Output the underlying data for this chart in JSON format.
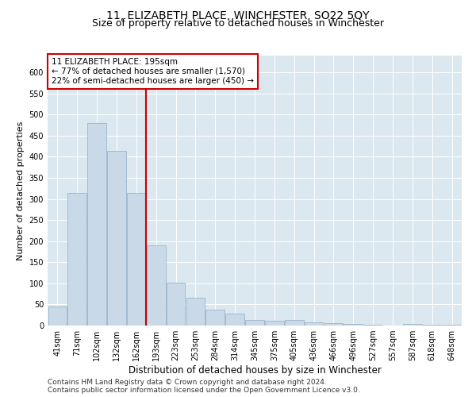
{
  "title": "11, ELIZABETH PLACE, WINCHESTER, SO22 5QY",
  "subtitle": "Size of property relative to detached houses in Winchester",
  "xlabel": "Distribution of detached houses by size in Winchester",
  "ylabel": "Number of detached properties",
  "bar_labels": [
    "41sqm",
    "71sqm",
    "102sqm",
    "132sqm",
    "162sqm",
    "193sqm",
    "223sqm",
    "253sqm",
    "284sqm",
    "314sqm",
    "345sqm",
    "375sqm",
    "405sqm",
    "436sqm",
    "466sqm",
    "496sqm",
    "527sqm",
    "557sqm",
    "587sqm",
    "618sqm",
    "648sqm"
  ],
  "bar_values": [
    45,
    315,
    480,
    415,
    315,
    190,
    102,
    65,
    37,
    28,
    14,
    12,
    13,
    7,
    5,
    3,
    1,
    0,
    3,
    1,
    2
  ],
  "bar_color": "#c9d9e8",
  "bar_edge_color": "#9ab4cc",
  "ylim": [
    0,
    640
  ],
  "yticks": [
    0,
    50,
    100,
    150,
    200,
    250,
    300,
    350,
    400,
    450,
    500,
    550,
    600
  ],
  "vline_pos": 4.5,
  "vline_color": "#cc0000",
  "bg_color": "#dce8f0",
  "annotation_text": "11 ELIZABETH PLACE: 195sqm\n← 77% of detached houses are smaller (1,570)\n22% of semi-detached houses are larger (450) →",
  "annotation_box_color": "#cc0000",
  "footer_line1": "Contains HM Land Registry data © Crown copyright and database right 2024.",
  "footer_line2": "Contains public sector information licensed under the Open Government Licence v3.0.",
  "title_fontsize": 10,
  "subtitle_fontsize": 9,
  "xlabel_fontsize": 8.5,
  "ylabel_fontsize": 8,
  "tick_fontsize": 7,
  "footer_fontsize": 6.5,
  "annotation_fontsize": 7.5
}
